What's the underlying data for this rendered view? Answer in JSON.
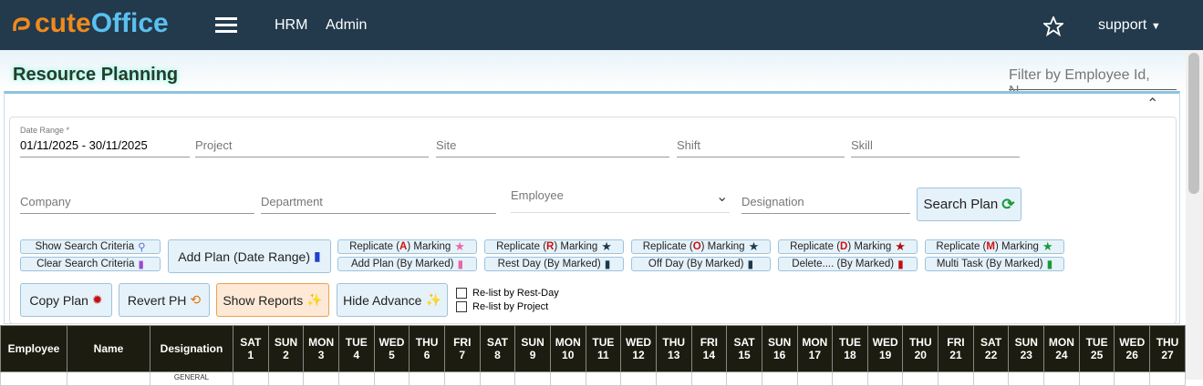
{
  "header": {
    "logo": [
      "cute",
      "Office"
    ],
    "nav": [
      "HRM",
      "Admin"
    ],
    "user": "support"
  },
  "page": {
    "title": "Resource Planning",
    "filter_placeholder": "Filter by Employee Id, N..."
  },
  "form": {
    "date_label": "Date Range *",
    "date_value": "01/11/2025 - 30/11/2025",
    "row1": [
      "Project",
      "Site",
      "Shift",
      "Skill"
    ],
    "row2": [
      "Company",
      "Department",
      "Employee",
      "Designation"
    ],
    "search_button": "Search Plan"
  },
  "actions": {
    "show_search": "Show Search Criteria",
    "clear_search": "Clear Search Criteria",
    "add_plan_range": "Add Plan (Date Range)",
    "replicate": [
      {
        "before": "Replicate (",
        "letter": "A",
        "after": ") Marking"
      },
      {
        "before": "Replicate (",
        "letter": "R",
        "after": ") Marking"
      },
      {
        "before": "Replicate (",
        "letter": "O",
        "after": ") Marking"
      },
      {
        "before": "Replicate (",
        "letter": "D",
        "after": ") Marking"
      },
      {
        "before": "Replicate (",
        "letter": "M",
        "after": ") Marking"
      }
    ],
    "marked": [
      "Add Plan (By Marked)",
      "Rest Day (By Marked)",
      "Off Day (By Marked)",
      "Delete.... (By Marked)",
      "Multi Task (By Marked)"
    ],
    "bottom": [
      "Copy Plan",
      "Revert PH",
      "Show Reports",
      "Hide Advance"
    ],
    "checkboxes": [
      "Re-list by Rest-Day",
      "Re-list by Project"
    ]
  },
  "table": {
    "columns": [
      "Employee",
      "Name",
      "Designation"
    ],
    "days": [
      [
        "SAT",
        1
      ],
      [
        "SUN",
        2
      ],
      [
        "MON",
        3
      ],
      [
        "TUE",
        4
      ],
      [
        "WED",
        5
      ],
      [
        "THU",
        6
      ],
      [
        "FRI",
        7
      ],
      [
        "SAT",
        8
      ],
      [
        "SUN",
        9
      ],
      [
        "MON",
        10
      ],
      [
        "TUE",
        11
      ],
      [
        "WED",
        12
      ],
      [
        "THU",
        13
      ],
      [
        "FRI",
        14
      ],
      [
        "SAT",
        15
      ],
      [
        "SUN",
        16
      ],
      [
        "MON",
        17
      ],
      [
        "TUE",
        18
      ],
      [
        "WED",
        19
      ],
      [
        "THU",
        20
      ],
      [
        "FRI",
        21
      ],
      [
        "SAT",
        22
      ],
      [
        "SUN",
        23
      ],
      [
        "MON",
        24
      ],
      [
        "TUE",
        25
      ],
      [
        "WED",
        26
      ],
      [
        "THU",
        27
      ]
    ],
    "first_row_designation": "GENERAL"
  }
}
